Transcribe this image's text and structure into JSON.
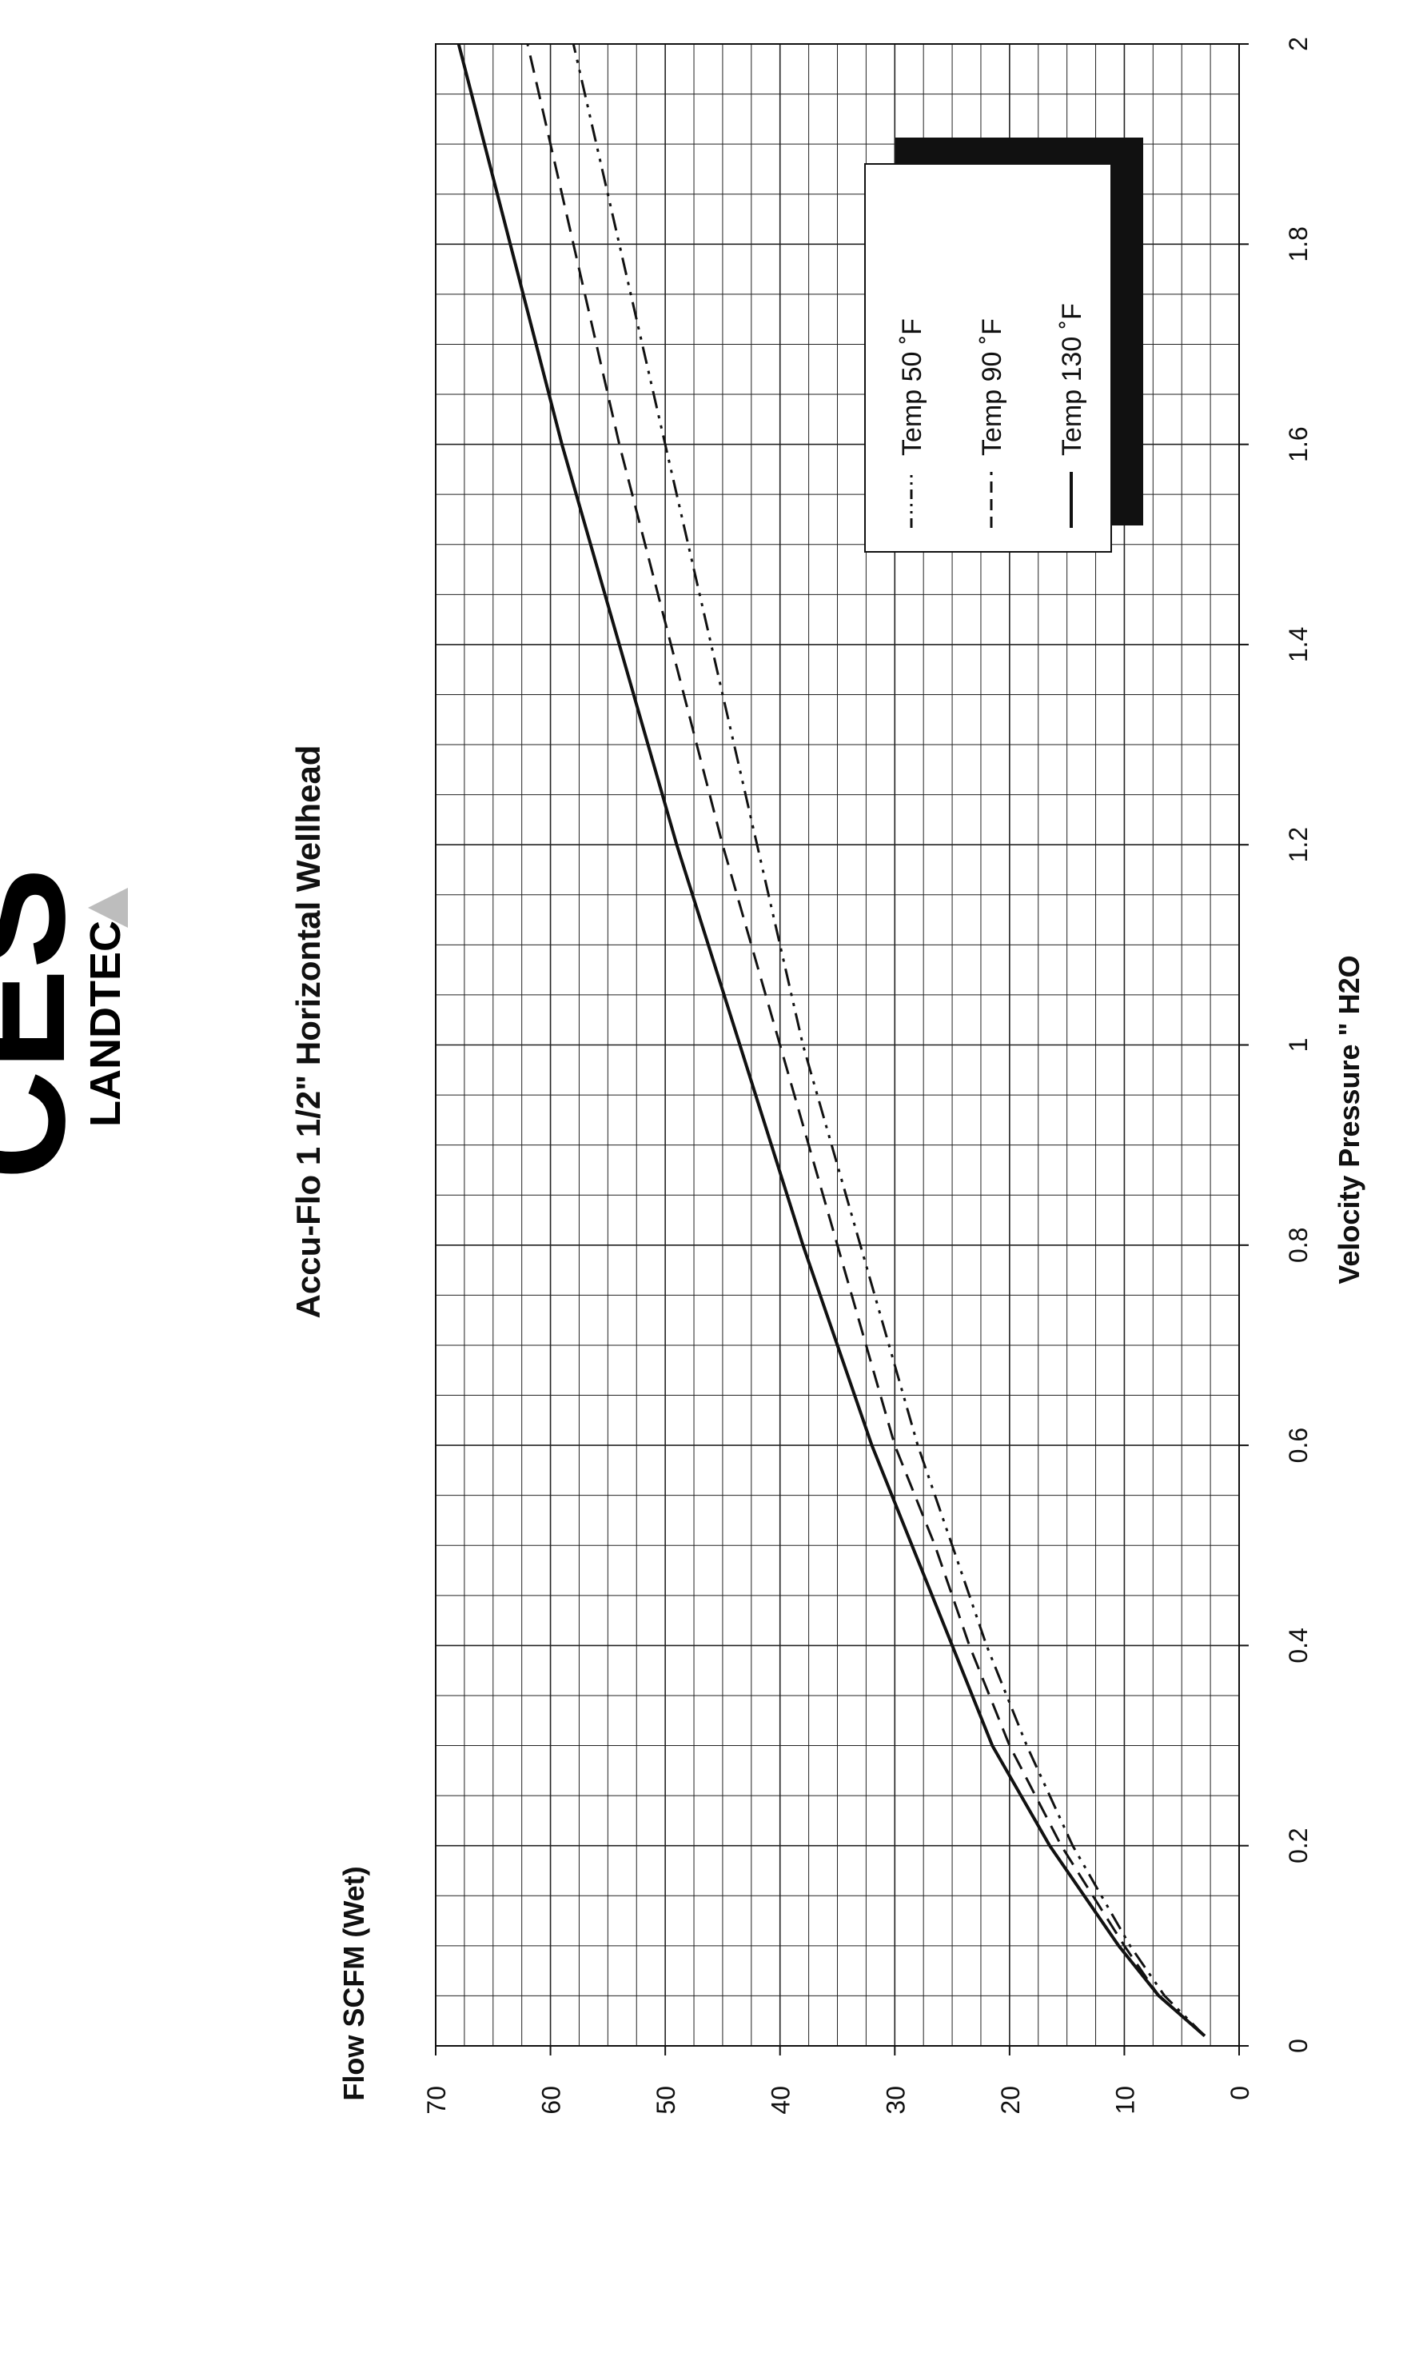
{
  "logo": {
    "text": "CES",
    "subtext": "LANDTEC",
    "colors": {
      "primary": "#000000",
      "secondary": "#bdbdbd"
    }
  },
  "chart_data": {
    "type": "line",
    "title": "Accu-Flo 1 1/2\" Horizontal Wellhead",
    "xlabel": "Velocity Pressure \" H2O",
    "ylabel": "Flow SCFM (Wet)",
    "xlim": [
      0,
      2
    ],
    "ylim": [
      0,
      70
    ],
    "x_ticks": [
      "0",
      "0.2",
      "0.4",
      "0.6",
      "0.8",
      "1",
      "1.2",
      "1.4",
      "1.6",
      "1.8",
      "2"
    ],
    "y_ticks": [
      "0",
      "10",
      "20",
      "30",
      "40",
      "50",
      "60",
      "70"
    ],
    "grid": true,
    "legend_position": "top-right",
    "series": [
      {
        "name": "Temp 50 ˚F",
        "style": "dash-dot-dot",
        "color": "#111111",
        "x": [
          0.01,
          0.05,
          0.1,
          0.2,
          0.3,
          0.4,
          0.5,
          0.6,
          0.8,
          1.0,
          1.2,
          1.4,
          1.6,
          1.8,
          2.0
        ],
        "y": [
          3,
          6.5,
          9.5,
          14.5,
          18.5,
          22,
          25,
          28,
          33,
          38,
          42,
          46,
          50,
          54,
          58
        ]
      },
      {
        "name": "Temp 90 ˚F",
        "style": "dashed",
        "color": "#111111",
        "x": [
          0.01,
          0.05,
          0.1,
          0.2,
          0.3,
          0.4,
          0.5,
          0.6,
          0.8,
          1.0,
          1.2,
          1.4,
          1.6,
          1.8,
          2.0
        ],
        "y": [
          3,
          7,
          10,
          15.5,
          20,
          23.5,
          26.5,
          30,
          35,
          40,
          45,
          49.5,
          54,
          58,
          62
        ]
      },
      {
        "name": "Temp 130 ˚F",
        "style": "solid",
        "color": "#111111",
        "x": [
          0.01,
          0.05,
          0.1,
          0.2,
          0.3,
          0.4,
          0.5,
          0.6,
          0.8,
          1.0,
          1.2,
          1.4,
          1.6,
          1.8,
          2.0
        ],
        "y": [
          3,
          7,
          10.5,
          16.5,
          21.5,
          25,
          28.5,
          32,
          38,
          43.5,
          49,
          54,
          59,
          63.5,
          68
        ]
      }
    ]
  }
}
